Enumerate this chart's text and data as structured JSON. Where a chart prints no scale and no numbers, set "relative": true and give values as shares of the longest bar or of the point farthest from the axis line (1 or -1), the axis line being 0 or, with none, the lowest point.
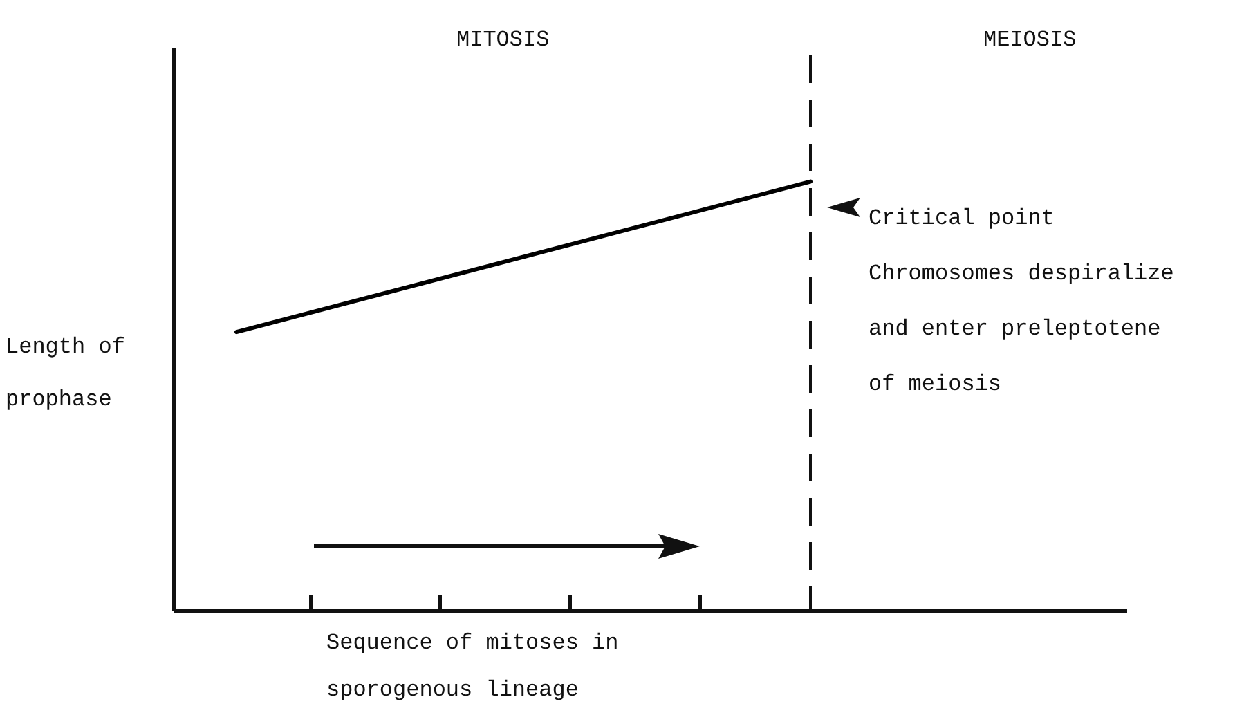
{
  "chart_data": {
    "type": "line",
    "relative": true,
    "xlabel": "Sequence of mitoses in sporogenous lineage",
    "ylabel": "Length of prophase",
    "categories": [
      null,
      null
    ],
    "series": [
      {
        "color": "#000000",
        "values": [
          0.65,
          1
        ]
      }
    ],
    "marker": "none",
    "line_style": "solid",
    "annotations": [
      "MITOSIS",
      "MEIOSIS",
      "Critical point Chromosomes despiralize and enter preleptotene of meiosis"
    ]
  }
}
